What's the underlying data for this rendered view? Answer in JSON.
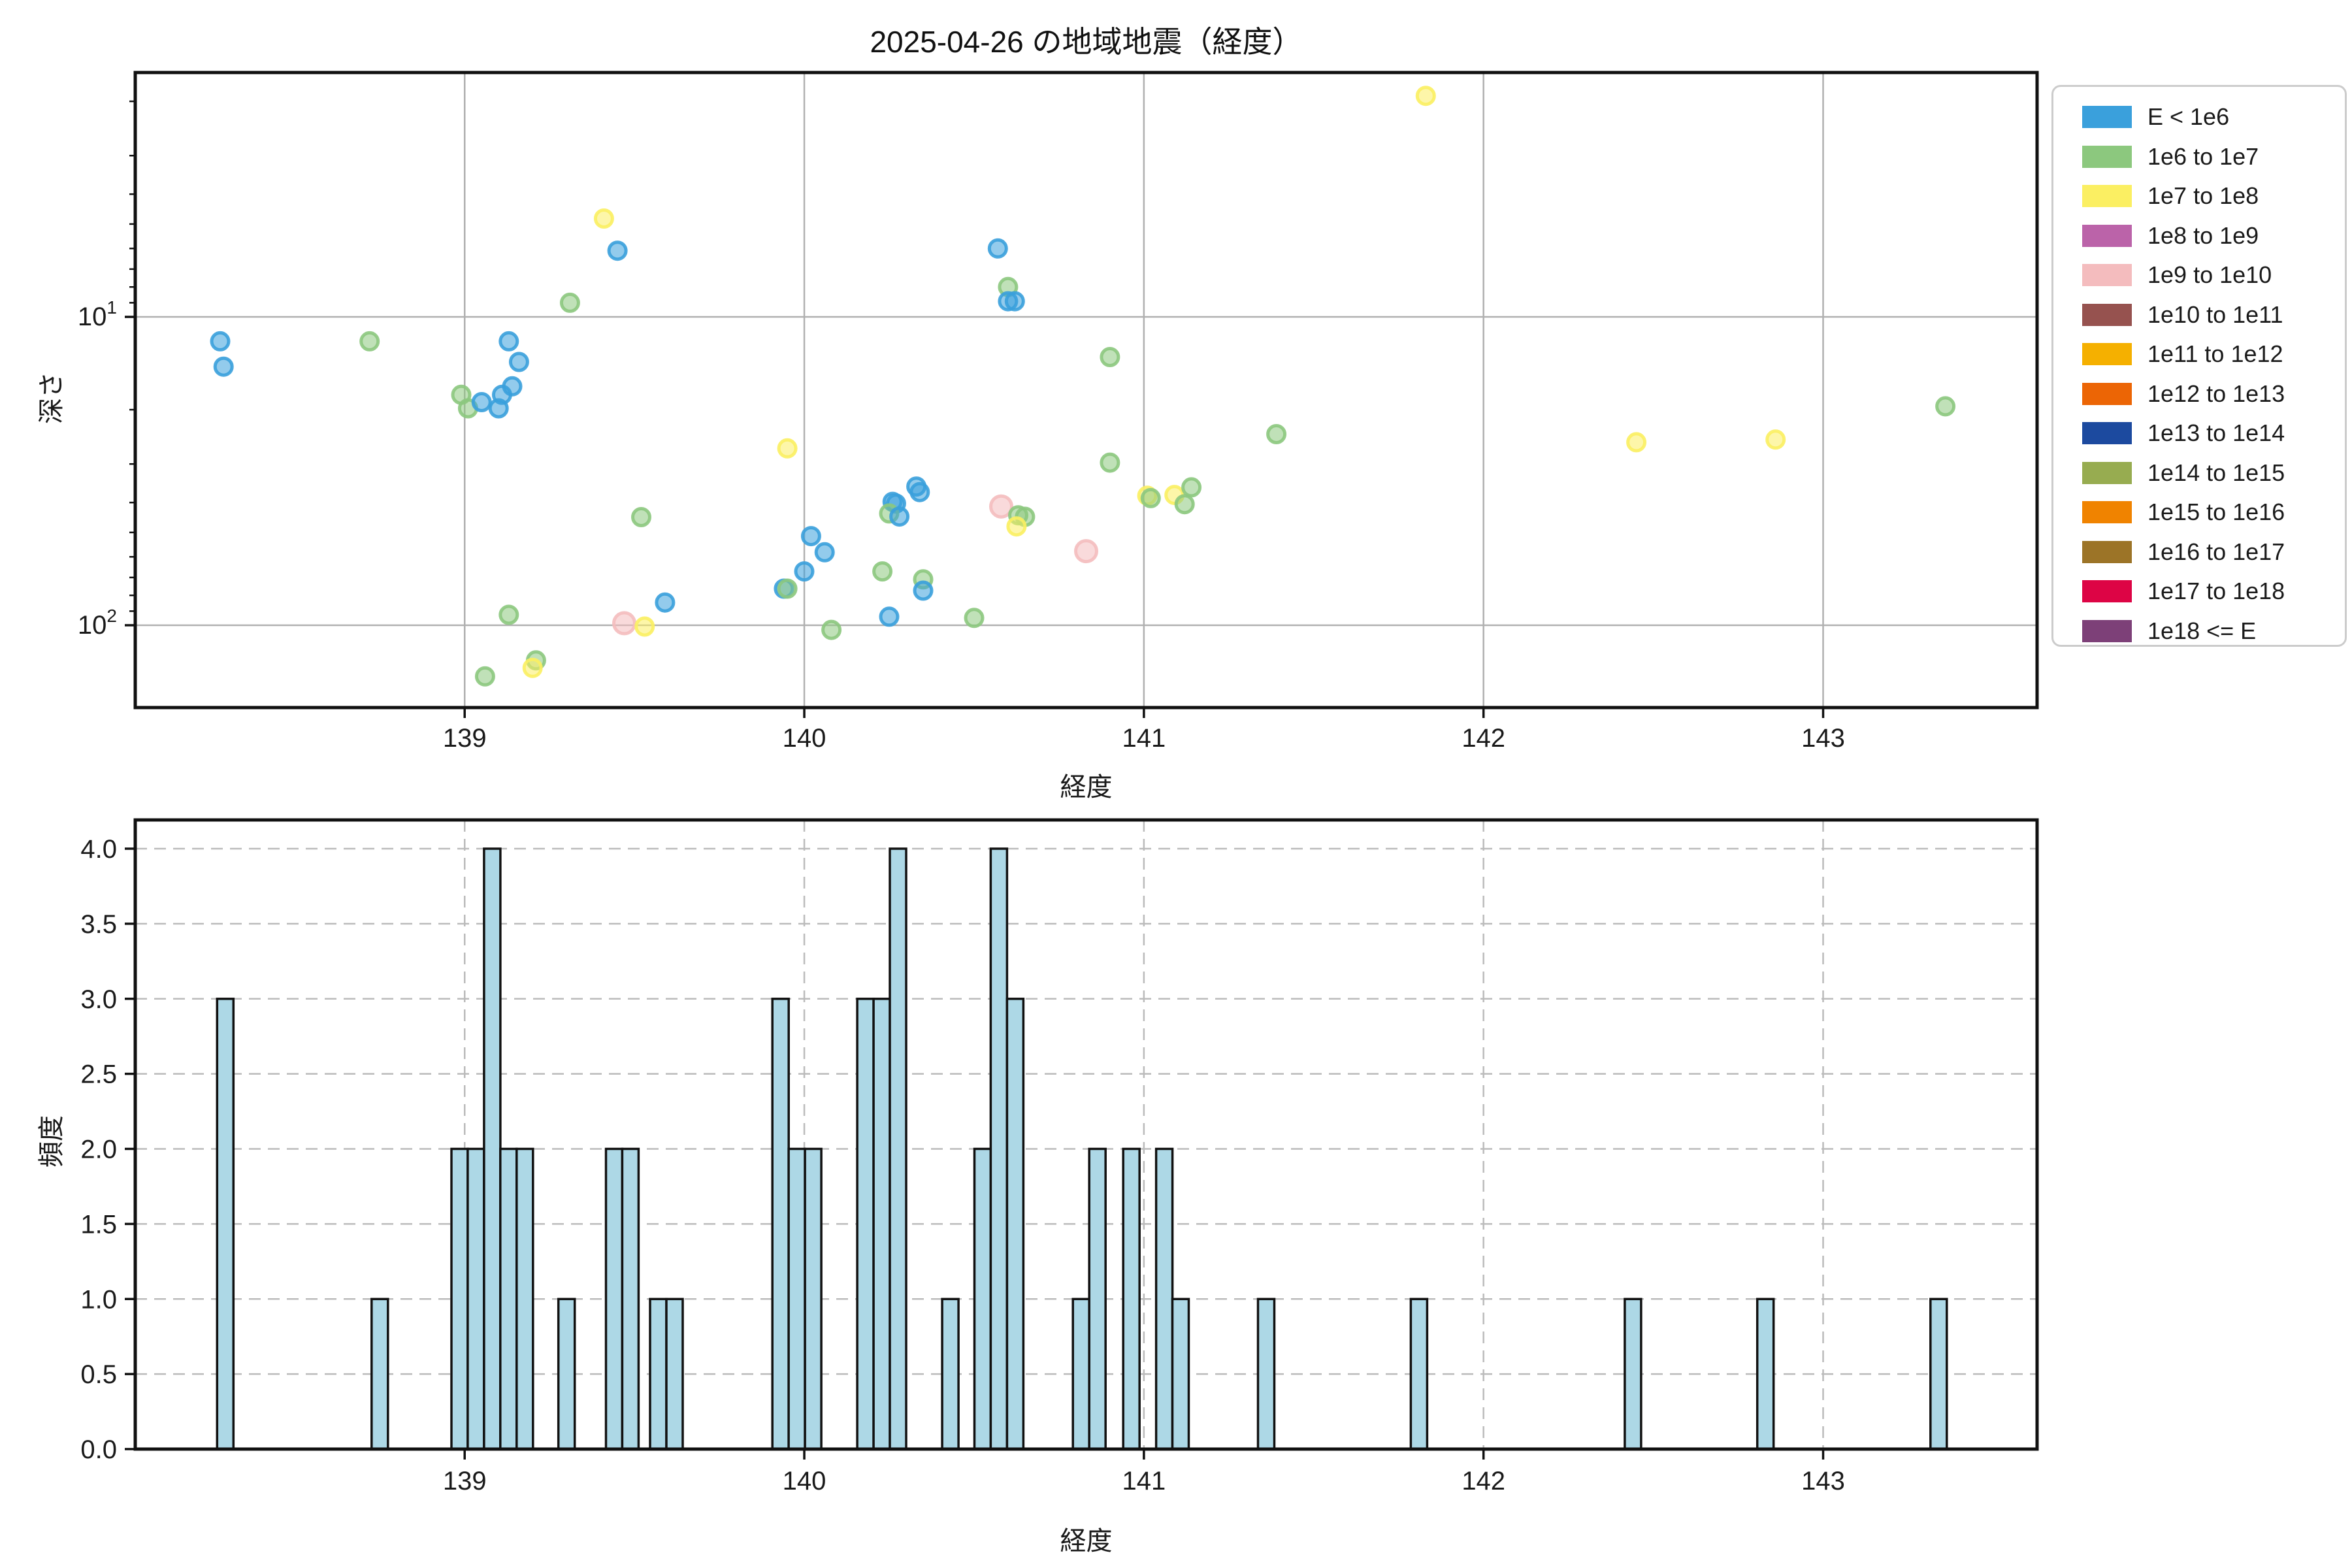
{
  "title": "2025-04-26 の地域地震（経度）",
  "legend": {
    "entries": [
      {
        "label": "E < 1e6",
        "color": "#3AA0DC"
      },
      {
        "label": "1e6 to 1e7",
        "color": "#8CC87E"
      },
      {
        "label": "1e7 to 1e8",
        "color": "#FBEF62"
      },
      {
        "label": "1e8 to 1e9",
        "color": "#BB63A9"
      },
      {
        "label": "1e9 to 1e10",
        "color": "#F4BCBE"
      },
      {
        "label": "1e10 to 1e11",
        "color": "#96524F"
      },
      {
        "label": "1e11 to 1e12",
        "color": "#F5B000"
      },
      {
        "label": "1e12 to 1e13",
        "color": "#EC6505"
      },
      {
        "label": "1e13 to 1e14",
        "color": "#1C4A9F"
      },
      {
        "label": "1e14 to 1e15",
        "color": "#97AC50"
      },
      {
        "label": "1e15 to 1e16",
        "color": "#F08300"
      },
      {
        "label": "1e16 to 1e17",
        "color": "#9C7427"
      },
      {
        "label": "1e17 to 1e18",
        "color": "#DD0445"
      },
      {
        "label": "1e18 <= E",
        "color": "#7D4078"
      }
    ]
  },
  "chart_data": [
    {
      "type": "scatter",
      "title": "2025-04-26 の地域地震（経度）",
      "xlabel": "経度",
      "ylabel": "深さ",
      "xlim": [
        138.03,
        143.63
      ],
      "ylim_depth_bottom_to_top": [
        184,
        1.61
      ],
      "yscale": "log-inverted",
      "grid": "solid, at x integers and depth 10/100",
      "x_ticks": [
        139,
        140,
        141,
        142,
        143
      ],
      "y_ticks": [
        {
          "base": "10",
          "exp": "1",
          "depth": 10
        },
        {
          "base": "10",
          "exp": "2",
          "depth": 100
        }
      ],
      "y_minor_tick_depths": [
        2,
        3,
        4,
        5,
        6,
        7,
        8,
        9,
        20,
        30,
        40,
        50,
        60,
        70,
        80,
        90
      ],
      "legend_position": "outside-right",
      "points": [
        {
          "lon": 138.28,
          "depth": 12.0,
          "bin": 0
        },
        {
          "lon": 138.29,
          "depth": 14.5,
          "bin": 0
        },
        {
          "lon": 138.72,
          "depth": 12.0,
          "bin": 1
        },
        {
          "lon": 138.99,
          "depth": 17.9,
          "bin": 1
        },
        {
          "lon": 139.01,
          "depth": 19.8,
          "bin": 1
        },
        {
          "lon": 139.05,
          "depth": 18.9,
          "bin": 0
        },
        {
          "lon": 139.13,
          "depth": 12.0,
          "bin": 0
        },
        {
          "lon": 139.16,
          "depth": 14.0,
          "bin": 0
        },
        {
          "lon": 139.14,
          "depth": 16.8,
          "bin": 0
        },
        {
          "lon": 139.11,
          "depth": 17.9,
          "bin": 0
        },
        {
          "lon": 139.1,
          "depth": 19.8,
          "bin": 0
        },
        {
          "lon": 139.31,
          "depth": 9.0,
          "bin": 1
        },
        {
          "lon": 139.41,
          "depth": 4.8,
          "bin": 2
        },
        {
          "lon": 139.45,
          "depth": 6.1,
          "bin": 0
        },
        {
          "lon": 139.52,
          "depth": 44.6,
          "bin": 1
        },
        {
          "lon": 139.59,
          "depth": 84.4,
          "bin": 0
        },
        {
          "lon": 139.13,
          "depth": 92.5,
          "bin": 1
        },
        {
          "lon": 139.47,
          "depth": 98.5,
          "bin": 4
        },
        {
          "lon": 139.53,
          "depth": 101.0,
          "bin": 2
        },
        {
          "lon": 139.21,
          "depth": 130.0,
          "bin": 1
        },
        {
          "lon": 139.2,
          "depth": 137.5,
          "bin": 2
        },
        {
          "lon": 139.06,
          "depth": 146.5,
          "bin": 1
        },
        {
          "lon": 139.95,
          "depth": 26.7,
          "bin": 2
        },
        {
          "lon": 140.33,
          "depth": 35.5,
          "bin": 0
        },
        {
          "lon": 140.34,
          "depth": 37.0,
          "bin": 0
        },
        {
          "lon": 140.26,
          "depth": 39.8,
          "bin": 0
        },
        {
          "lon": 140.27,
          "depth": 40.3,
          "bin": 0
        },
        {
          "lon": 140.25,
          "depth": 43.4,
          "bin": 1
        },
        {
          "lon": 140.28,
          "depth": 44.4,
          "bin": 0
        },
        {
          "lon": 140.58,
          "depth": 41.2,
          "bin": 4
        },
        {
          "lon": 140.63,
          "depth": 44.0,
          "bin": 1
        },
        {
          "lon": 140.65,
          "depth": 44.5,
          "bin": 1
        },
        {
          "lon": 140.625,
          "depth": 47.8,
          "bin": 2
        },
        {
          "lon": 140.02,
          "depth": 51.4,
          "bin": 0
        },
        {
          "lon": 140.06,
          "depth": 58.0,
          "bin": 0
        },
        {
          "lon": 140.0,
          "depth": 66.9,
          "bin": 0
        },
        {
          "lon": 139.94,
          "depth": 76.1,
          "bin": 0
        },
        {
          "lon": 139.95,
          "depth": 76.1,
          "bin": 1
        },
        {
          "lon": 140.23,
          "depth": 66.9,
          "bin": 1
        },
        {
          "lon": 140.35,
          "depth": 71.0,
          "bin": 1
        },
        {
          "lon": 140.35,
          "depth": 77.2,
          "bin": 0
        },
        {
          "lon": 140.25,
          "depth": 93.8,
          "bin": 0
        },
        {
          "lon": 140.5,
          "depth": 94.7,
          "bin": 1
        },
        {
          "lon": 140.08,
          "depth": 103.5,
          "bin": 1
        },
        {
          "lon": 140.57,
          "depth": 6.0,
          "bin": 0
        },
        {
          "lon": 140.6,
          "depth": 8.0,
          "bin": 1
        },
        {
          "lon": 140.6,
          "depth": 8.9,
          "bin": 0
        },
        {
          "lon": 140.62,
          "depth": 8.9,
          "bin": 0
        },
        {
          "lon": 140.9,
          "depth": 13.5,
          "bin": 1
        },
        {
          "lon": 140.9,
          "depth": 29.7,
          "bin": 1
        },
        {
          "lon": 140.83,
          "depth": 57.5,
          "bin": 4
        },
        {
          "lon": 141.01,
          "depth": 38.0,
          "bin": 2
        },
        {
          "lon": 141.02,
          "depth": 38.7,
          "bin": 1
        },
        {
          "lon": 141.09,
          "depth": 37.8,
          "bin": 2
        },
        {
          "lon": 141.14,
          "depth": 35.7,
          "bin": 1
        },
        {
          "lon": 141.12,
          "depth": 40.5,
          "bin": 1
        },
        {
          "lon": 141.39,
          "depth": 24.0,
          "bin": 1
        },
        {
          "lon": 141.83,
          "depth": 1.92,
          "bin": 2
        },
        {
          "lon": 142.45,
          "depth": 25.5,
          "bin": 2
        },
        {
          "lon": 142.86,
          "depth": 25.0,
          "bin": 2
        },
        {
          "lon": 143.36,
          "depth": 19.5,
          "bin": 1
        }
      ]
    },
    {
      "type": "bar",
      "xlabel": "経度",
      "ylabel": "頻度",
      "xlim": [
        138.03,
        143.63
      ],
      "ylim": [
        0,
        4.19
      ],
      "grid": "dashed, x integers and y every 0.5",
      "x_ticks": [
        139,
        140,
        141,
        142,
        143
      ],
      "y_ticks": [
        0.0,
        0.5,
        1.0,
        1.5,
        2.0,
        2.5,
        3.0,
        3.5,
        4.0
      ],
      "bar_color": "#ADD8E6",
      "bar_width_lon": 0.048,
      "bars": [
        {
          "lon": 138.295,
          "count": 3
        },
        {
          "lon": 138.75,
          "count": 1
        },
        {
          "lon": 138.985,
          "count": 2
        },
        {
          "lon": 139.033,
          "count": 2
        },
        {
          "lon": 139.081,
          "count": 4
        },
        {
          "lon": 139.129,
          "count": 2
        },
        {
          "lon": 139.177,
          "count": 2
        },
        {
          "lon": 139.3,
          "count": 1
        },
        {
          "lon": 139.44,
          "count": 2
        },
        {
          "lon": 139.488,
          "count": 2
        },
        {
          "lon": 139.57,
          "count": 1
        },
        {
          "lon": 139.618,
          "count": 1
        },
        {
          "lon": 139.93,
          "count": 3
        },
        {
          "lon": 139.978,
          "count": 2
        },
        {
          "lon": 140.026,
          "count": 2
        },
        {
          "lon": 140.18,
          "count": 3
        },
        {
          "lon": 140.228,
          "count": 3
        },
        {
          "lon": 140.276,
          "count": 4
        },
        {
          "lon": 140.43,
          "count": 1
        },
        {
          "lon": 140.525,
          "count": 2
        },
        {
          "lon": 140.573,
          "count": 4
        },
        {
          "lon": 140.621,
          "count": 3
        },
        {
          "lon": 140.815,
          "count": 1
        },
        {
          "lon": 140.863,
          "count": 2
        },
        {
          "lon": 140.963,
          "count": 2
        },
        {
          "lon": 141.06,
          "count": 2
        },
        {
          "lon": 141.108,
          "count": 1
        },
        {
          "lon": 141.36,
          "count": 1
        },
        {
          "lon": 141.81,
          "count": 1
        },
        {
          "lon": 142.44,
          "count": 1
        },
        {
          "lon": 142.83,
          "count": 1
        },
        {
          "lon": 143.34,
          "count": 1
        }
      ]
    }
  ]
}
